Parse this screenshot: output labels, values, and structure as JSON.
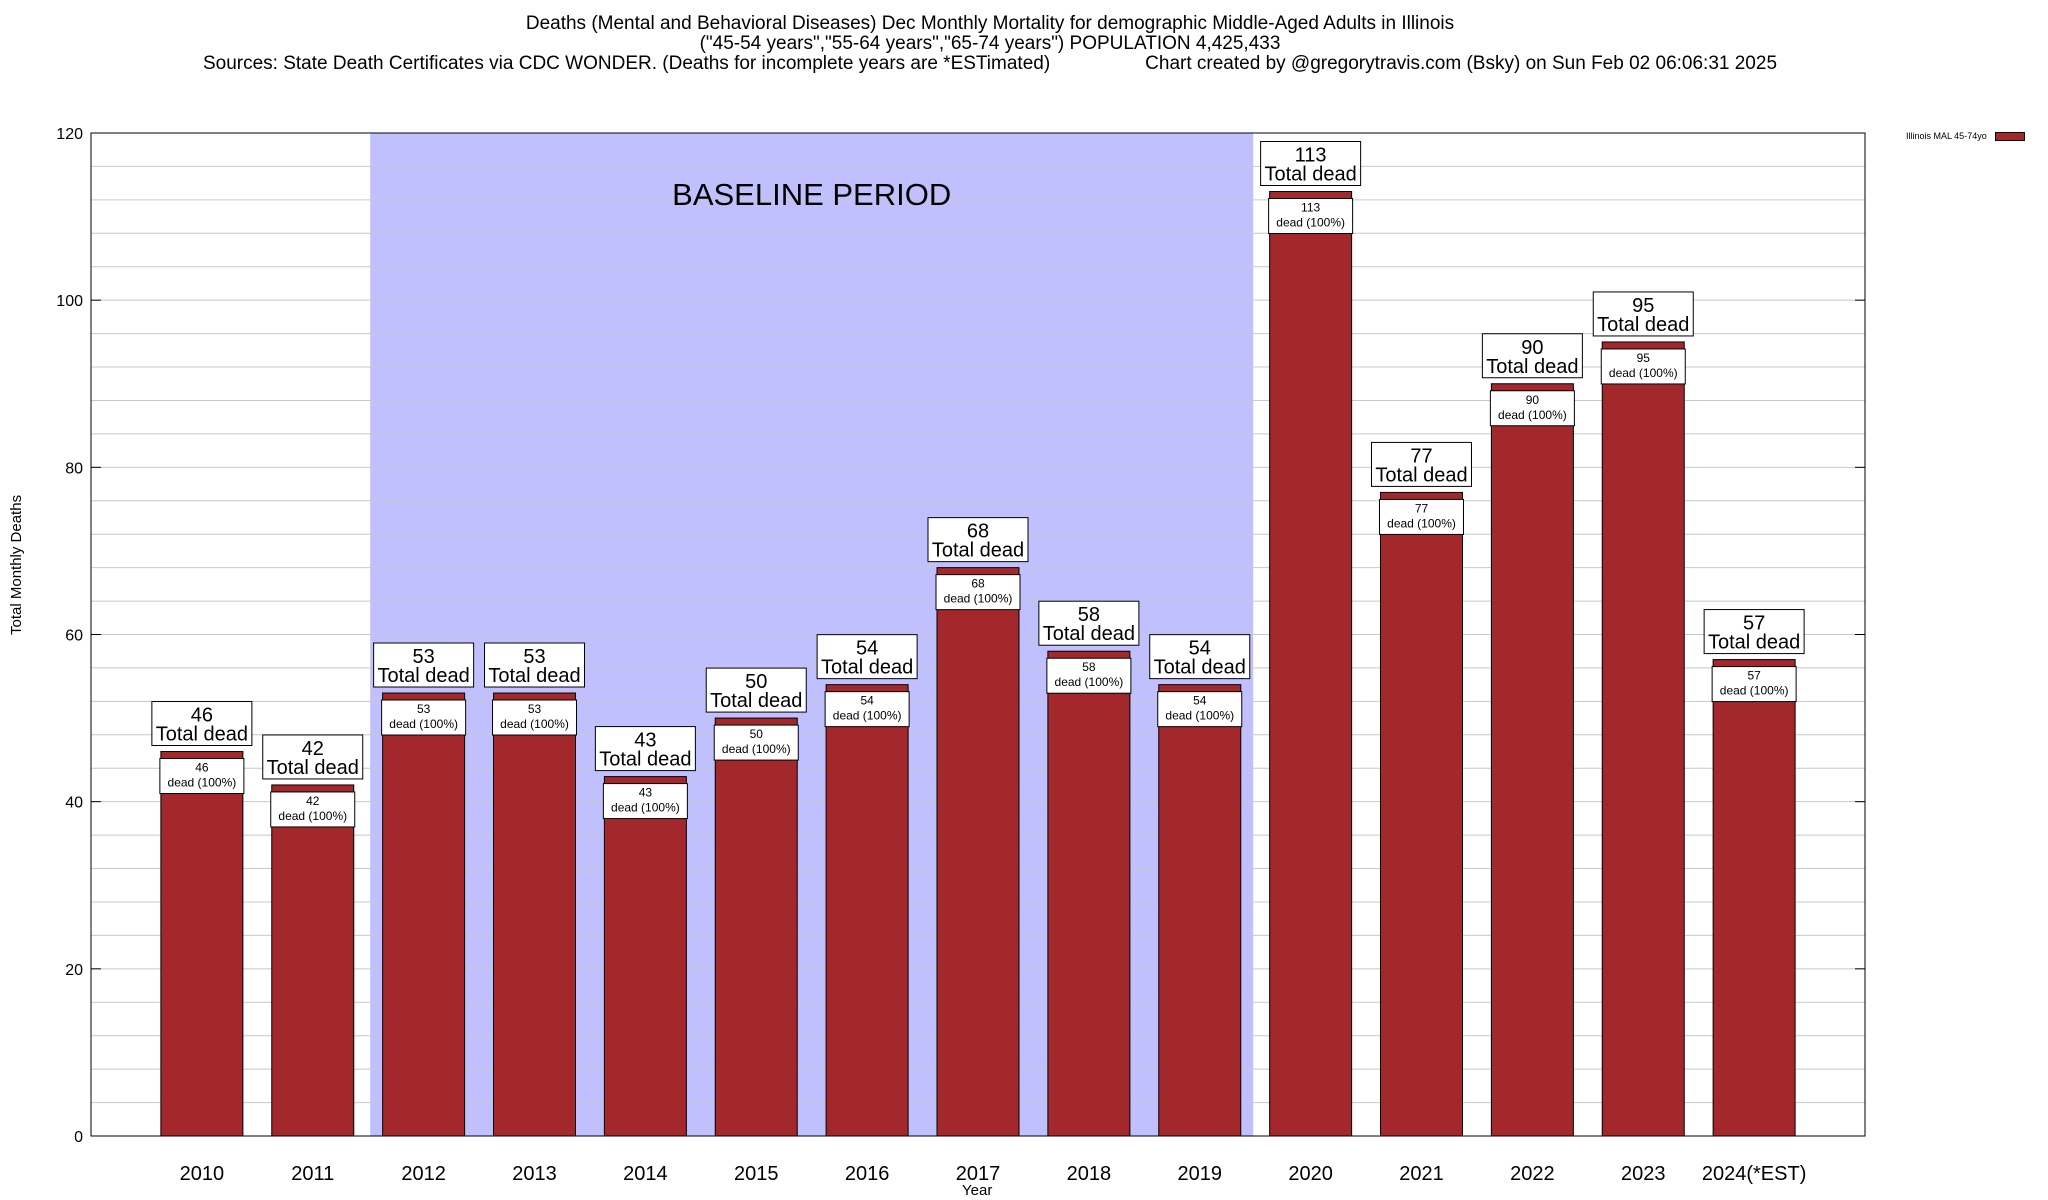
{
  "titles": {
    "line1": "Deaths (Mental and Behavioral Diseases) Dec Monthly Mortality for demographic Middle-Aged Adults in Illinois",
    "line2": "(\"45-54 years\",\"55-64 years\",\"65-74 years\") POPULATION 4,425,433",
    "sources": "Sources: State Death Certificates via CDC WONDER. (Deaths for incomplete years are *ESTimated)",
    "credit": "Chart created by @gregorytravis.com (Bsky) on Sun Feb 02 06:06:31 2025"
  },
  "colors": {
    "bar": "#a2282c",
    "baseline_band": "#c0c0ff",
    "grid": "#c8c8c8"
  },
  "chart_data": {
    "type": "bar",
    "title": "Deaths (Mental and Behavioral Diseases) Dec Monthly Mortality for demographic Middle-Aged Adults in Illinois",
    "xlabel": "Year",
    "ylabel": "Total Monthly Deaths",
    "ylim": [
      0,
      120
    ],
    "yticks": [
      0,
      20,
      40,
      60,
      80,
      100,
      120
    ],
    "grid": true,
    "legend_position": "top-right",
    "categories": [
      "2010",
      "2011",
      "2012",
      "2013",
      "2014",
      "2015",
      "2016",
      "2017",
      "2018",
      "2019",
      "2020",
      "2021",
      "2022",
      "2023",
      "2024(*EST)"
    ],
    "series": [
      {
        "name": "Illinois MAL 45-74yo",
        "values": [
          46,
          42,
          53,
          53,
          43,
          50,
          54,
          68,
          58,
          54,
          113,
          77,
          90,
          95,
          57
        ]
      }
    ],
    "top_label_suffix": "Total dead",
    "inner_label_suffix": "dead (100%)",
    "annotations": [
      {
        "text": "BASELINE PERIOD",
        "from": "2012",
        "to": "2019"
      }
    ]
  }
}
